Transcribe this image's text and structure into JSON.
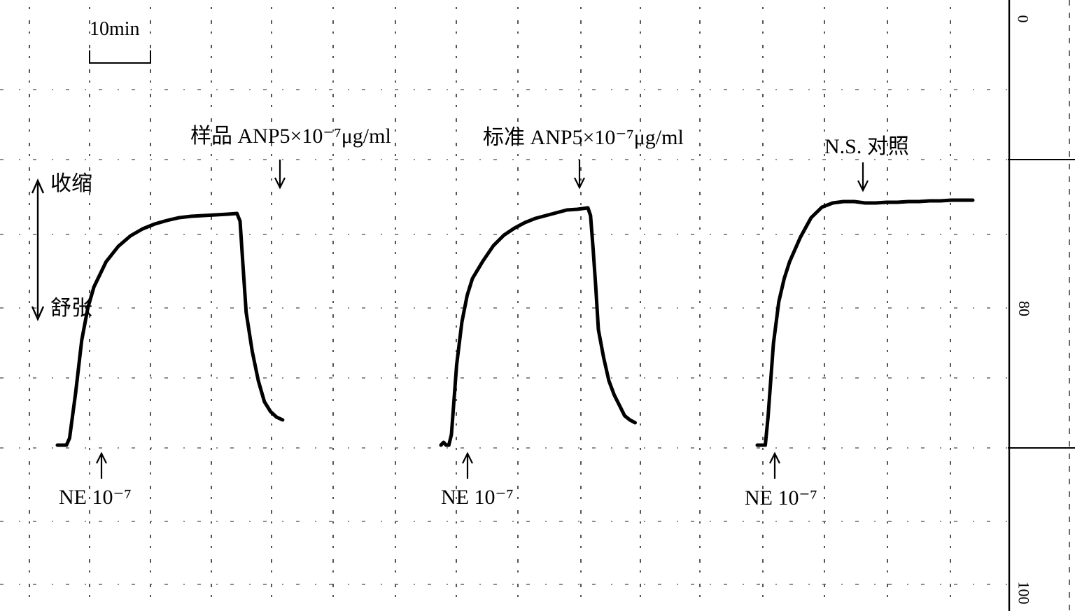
{
  "chart_data": {
    "type": "line",
    "title": "",
    "xlabel": "",
    "ylabel": "",
    "scale_bar": "10min",
    "axis": {
      "left_top": "收缩",
      "left_bottom": "舒张",
      "right_ticks": [
        "0",
        "80",
        "100"
      ]
    },
    "series": [
      {
        "name": "",
        "start_label": "NE 10⁻⁷",
        "treatment_label": "样品 ANP5×10⁻⁷μg/ml",
        "x": [
          0,
          0.5,
          1.0,
          1.5,
          2,
          3,
          4,
          5,
          6,
          8,
          10,
          12,
          14,
          16,
          18,
          20,
          22,
          24,
          26,
          28,
          29.5,
          30,
          30.5,
          31,
          32,
          33,
          34,
          35,
          36,
          37
        ],
        "y": [
          0,
          0,
          0,
          0,
          10,
          75,
          150,
          196,
          226,
          262,
          284,
          299,
          309,
          316,
          321,
          325,
          327,
          328,
          329,
          330,
          331,
          320,
          255,
          190,
          134,
          92,
          62,
          48,
          40,
          36
        ]
      },
      {
        "name": "",
        "start_label": "NE 10⁻⁷",
        "treatment_label": "标准 ANP5×10⁻⁷μg/ml",
        "x": [
          0,
          0.5,
          1.0,
          1.5,
          2,
          3,
          4,
          5,
          6,
          8,
          10,
          12,
          14,
          16,
          18,
          20,
          22,
          24,
          26,
          28,
          28.5,
          29,
          29.5,
          30,
          31,
          32,
          33,
          34,
          35,
          36,
          37
        ],
        "y": [
          0,
          4,
          0,
          0,
          15,
          115,
          176,
          214,
          238,
          263,
          285,
          300,
          310,
          318,
          324,
          328,
          332,
          336,
          337,
          339,
          328,
          280,
          225,
          165,
          125,
          92,
          72,
          57,
          42,
          36,
          32
        ]
      },
      {
        "name": "",
        "start_label": "NE 10⁻⁷",
        "treatment_label": "N.S. 对照",
        "x": [
          0,
          0.5,
          1.0,
          1.5,
          2,
          3,
          4,
          5,
          6,
          8,
          10,
          12,
          14,
          16,
          18,
          20,
          22,
          24,
          26,
          28,
          30,
          32,
          34,
          36,
          38,
          40
        ],
        "y": [
          0,
          0,
          0,
          0,
          40,
          145,
          205,
          238,
          262,
          297,
          325,
          340,
          346,
          348,
          348,
          346,
          346,
          347,
          347,
          348,
          348,
          349,
          349,
          350,
          350,
          350
        ]
      }
    ]
  }
}
